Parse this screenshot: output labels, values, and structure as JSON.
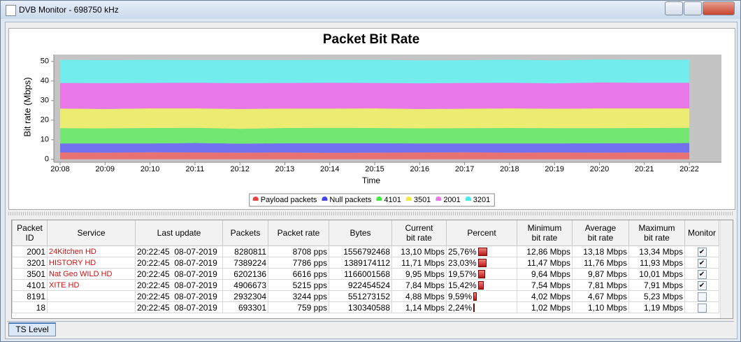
{
  "window": {
    "title": "DVB Monitor - 698750 kHz"
  },
  "chart_data": {
    "type": "stacked-area",
    "title": "Packet Bit Rate",
    "x_label": "Time",
    "y_label": "Bit rate (Mbps)",
    "categories": [
      "20:08",
      "20:09",
      "20:10",
      "20:11",
      "20:12",
      "20:13",
      "20:14",
      "20:15",
      "20:16",
      "20:17",
      "20:18",
      "20:19",
      "20:20",
      "20:21",
      "20:22"
    ],
    "ylim": [
      -1.5,
      53.5
    ],
    "yticks": [
      0,
      10,
      20,
      30,
      40,
      50
    ],
    "series": [
      {
        "name": "Payload packets",
        "color": "#e87272",
        "values": [
          3.5,
          3.4,
          3.6,
          3.5,
          3.4,
          3.5,
          3.3,
          3.4,
          3.5,
          3.6,
          3.4,
          3.5,
          3.4,
          3.5,
          3.4
        ]
      },
      {
        "name": "Null packets",
        "color": "#7272f0",
        "values": [
          4.6,
          4.7,
          4.5,
          4.8,
          4.6,
          4.7,
          4.9,
          4.8,
          4.6,
          4.5,
          4.7,
          4.6,
          4.8,
          4.7,
          4.9
        ]
      },
      {
        "name": "4101",
        "color": "#72e872",
        "values": [
          7.8,
          7.7,
          7.9,
          7.8,
          7.6,
          7.8,
          7.9,
          7.8,
          7.7,
          7.8,
          7.9,
          7.8,
          7.7,
          7.8,
          7.8
        ]
      },
      {
        "name": "3501",
        "color": "#ecec72",
        "values": [
          10.0,
          9.9,
          10.0,
          9.9,
          10.1,
          9.9,
          9.8,
          10.0,
          9.9,
          9.9,
          10.0,
          9.9,
          10.1,
          10.0,
          9.9
        ]
      },
      {
        "name": "2001",
        "color": "#e878e8",
        "values": [
          13.1,
          13.2,
          13.0,
          13.1,
          13.2,
          13.1,
          13.2,
          13.0,
          13.1,
          13.2,
          13.1,
          13.0,
          13.2,
          13.1,
          13.1
        ]
      },
      {
        "name": "3201",
        "color": "#72ecec",
        "values": [
          11.8,
          11.7,
          11.8,
          11.6,
          11.8,
          11.7,
          11.7,
          11.8,
          11.7,
          11.6,
          11.8,
          11.7,
          11.8,
          11.7,
          11.7
        ]
      }
    ],
    "legend": "bottom"
  },
  "table": {
    "headers": [
      [
        "Packet",
        "ID"
      ],
      [
        "Service"
      ],
      [
        "Last update"
      ],
      [
        "Packets"
      ],
      [
        "Packet rate"
      ],
      [
        "Bytes"
      ],
      [
        "Current",
        "bit rate"
      ],
      [
        "Percent"
      ],
      [
        "Minimum",
        "bit rate"
      ],
      [
        "Average",
        "bit rate"
      ],
      [
        "Maximum",
        "bit rate"
      ],
      [
        "Monitor"
      ]
    ],
    "rows": [
      [
        "2001",
        "24Kitchen HD",
        "20:22:45  08-07-2019",
        "8280811",
        "8708 pps",
        "1556792468",
        "13,10 Mbps",
        "25,76%",
        "12,86 Mbps",
        "13,18 Mbps",
        "13,34 Mbps",
        true
      ],
      [
        "3201",
        "HISTORY HD",
        "20:22:45  08-07-2019",
        "7389224",
        "7786 pps",
        "1389174112",
        "11,71 Mbps",
        "23,03%",
        "11,47 Mbps",
        "11,76 Mbps",
        "11,93 Mbps",
        true
      ],
      [
        "3501",
        "Nat Geo WILD HD",
        "20:22:45  08-07-2019",
        "6202136",
        "6616 pps",
        "1166001568",
        "9,95 Mbps",
        "19,57%",
        "9,64 Mbps",
        "9,87 Mbps",
        "10,01 Mbps",
        true
      ],
      [
        "4101",
        "XITE HD",
        "20:22:45  08-07-2019",
        "4906673",
        "5215 pps",
        "922454524",
        "7,84 Mbps",
        "15,42%",
        "7,54 Mbps",
        "7,81 Mbps",
        "7,91 Mbps",
        true
      ],
      [
        "8191",
        "",
        "20:22:45  08-07-2019",
        "2932304",
        "3244 pps",
        "551273152",
        "4,88 Mbps",
        "9,59%",
        "4,02 Mbps",
        "4,67 Mbps",
        "5,23 Mbps",
        false
      ],
      [
        "18",
        "",
        "20:22:45  08-07-2019",
        "693301",
        "759 pps",
        "130340588",
        "1,14 Mbps",
        "2,24%",
        "1,02 Mbps",
        "1,10 Mbps",
        "1,19 Mbps",
        false
      ]
    ]
  },
  "tabs": [
    "TS Level"
  ]
}
